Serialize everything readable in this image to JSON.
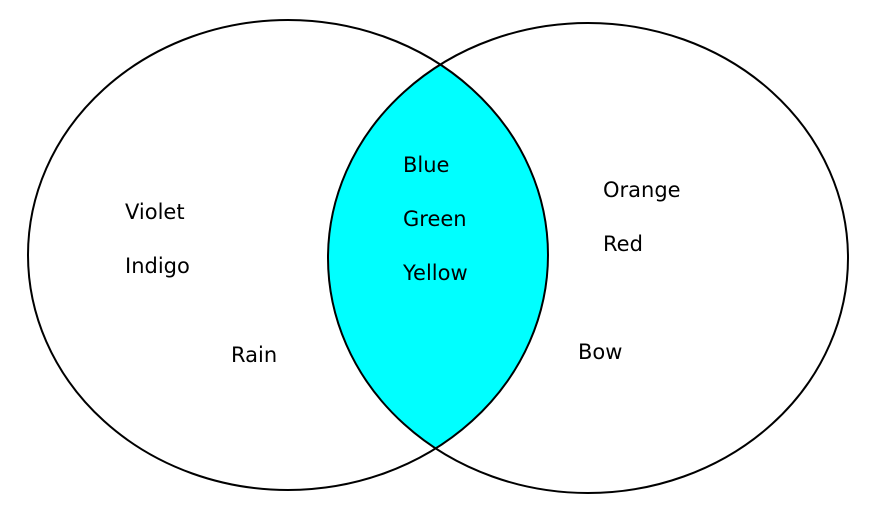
{
  "diagram": {
    "type": "venn",
    "colors": {
      "intersection_fill": "#00ffff",
      "outline": "#000000",
      "background": "#ffffff"
    },
    "left_only": {
      "items": [
        "Violet",
        "Indigo"
      ],
      "extra": "Rain"
    },
    "intersection": {
      "items": [
        "Blue",
        "Green",
        "Yellow"
      ]
    },
    "right_only": {
      "items": [
        "Orange",
        "Red"
      ],
      "extra": "Bow"
    }
  }
}
